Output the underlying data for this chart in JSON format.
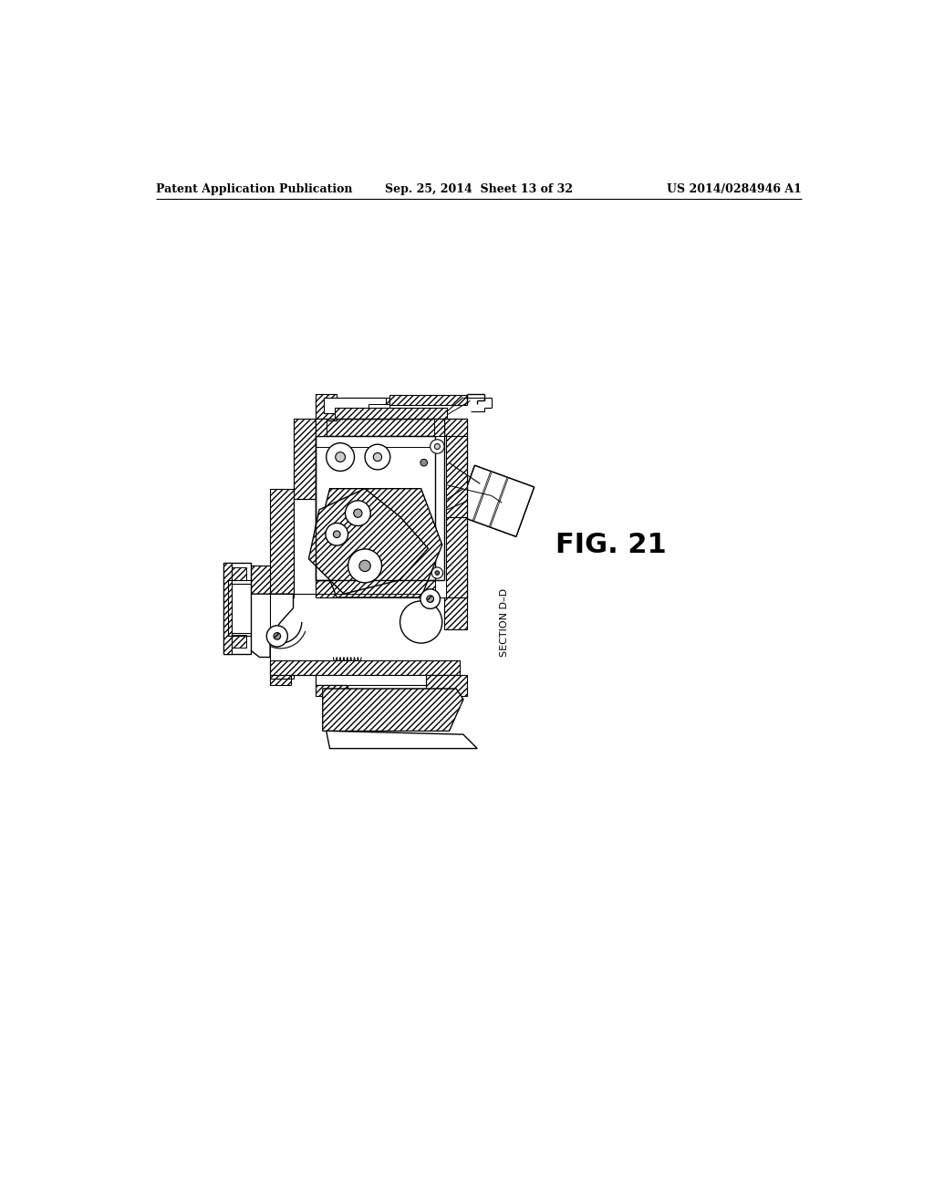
{
  "background_color": "#ffffff",
  "page_width": 10.24,
  "page_height": 13.2,
  "header_left": "Patent Application Publication",
  "header_center": "Sep. 25, 2014  Sheet 13 of 32",
  "header_right": "US 2014/0284946 A1",
  "fig_label": "FIG. 21",
  "section_label": "SECTION D–D",
  "line_color": "#000000"
}
